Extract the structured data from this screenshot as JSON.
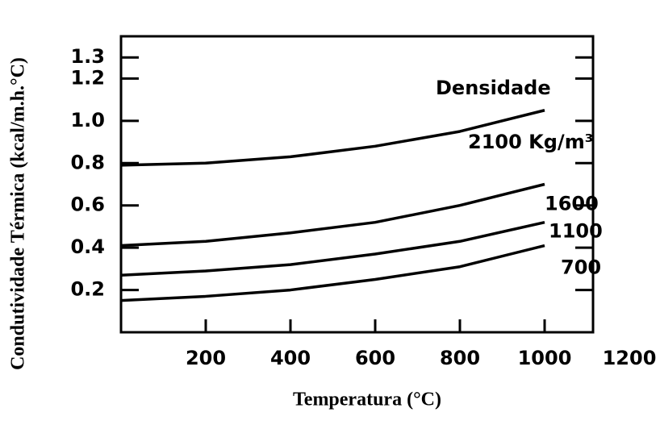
{
  "chart_data": {
    "type": "line",
    "x_label": "Temperatura (°C)",
    "y_label": "Condutividade Térmica (kcal/m.h.°C)",
    "annotation": "Densidade",
    "x": [
      0,
      200,
      400,
      600,
      800,
      1000
    ],
    "series": [
      {
        "name": "2100 Kg/m³",
        "color": "#000000",
        "values": [
          0.79,
          0.8,
          0.83,
          0.88,
          0.95,
          1.05
        ]
      },
      {
        "name": "1600",
        "color": "#000000",
        "values": [
          0.41,
          0.43,
          0.47,
          0.52,
          0.6,
          0.7
        ]
      },
      {
        "name": "1100",
        "color": "#000000",
        "values": [
          0.27,
          0.29,
          0.32,
          0.37,
          0.43,
          0.52
        ]
      },
      {
        "name": "700",
        "color": "#000000",
        "values": [
          0.15,
          0.17,
          0.2,
          0.25,
          0.31,
          0.41
        ]
      }
    ],
    "xlim": [
      0,
      1200
    ],
    "xticks": [
      200,
      400,
      600,
      800,
      1000,
      1200
    ],
    "ylim": [
      0,
      1.4
    ],
    "yticks": [
      {
        "value": 0.2,
        "label": "0.2"
      },
      {
        "value": 0.4,
        "label": "0.4"
      },
      {
        "value": 0.6,
        "label": "0.6"
      },
      {
        "value": 0.8,
        "label": "0.8"
      },
      {
        "value": 1.0,
        "label": "1.0"
      },
      {
        "value": 1.2,
        "label": "1.2"
      },
      {
        "value": 1.3,
        "label": "1.3"
      }
    ],
    "grid": false
  }
}
